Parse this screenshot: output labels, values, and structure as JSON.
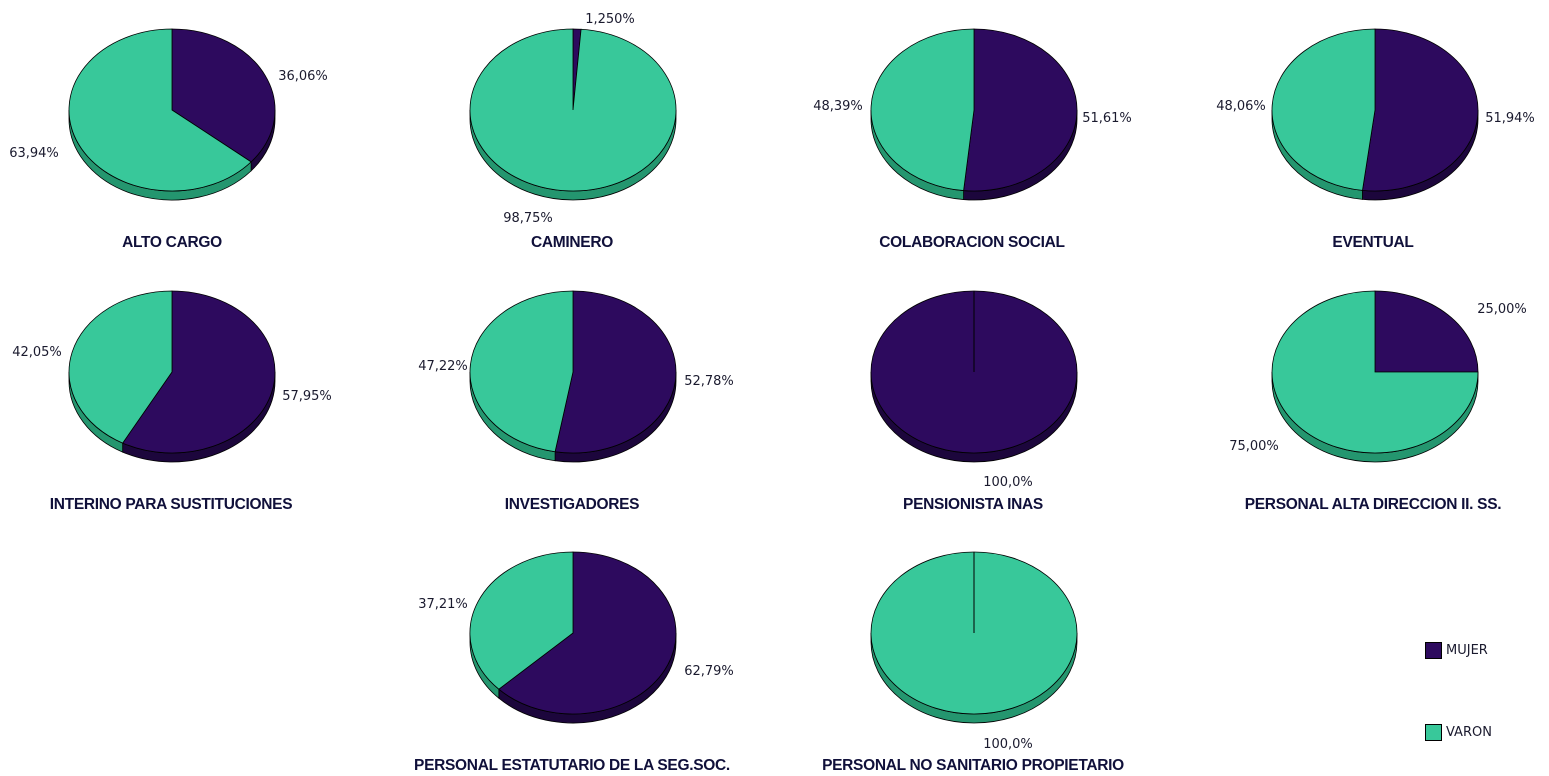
{
  "legend": {
    "mujer_label": "MUJER",
    "varon_label": "VARON",
    "mujer_color": "#2d0a5e",
    "varon_color": "#38c89a"
  },
  "chart_data": {
    "type": "pie",
    "series_names": [
      "MUJER",
      "VARON"
    ],
    "colors": {
      "MUJER": "#2d0a5e",
      "VARON": "#38c89a"
    },
    "pies": [
      {
        "title": "ALTO CARGO",
        "slices": [
          {
            "name": "MUJER",
            "value": 36.06,
            "label": "36,06%"
          },
          {
            "name": "VARON",
            "value": 63.94,
            "label": "63,94%"
          }
        ]
      },
      {
        "title": "CAMINERO",
        "slices": [
          {
            "name": "MUJER",
            "value": 1.25,
            "label": "1,250%"
          },
          {
            "name": "VARON",
            "value": 98.75,
            "label": "98,75%"
          }
        ]
      },
      {
        "title": "COLABORACION SOCIAL",
        "slices": [
          {
            "name": "MUJER",
            "value": 51.61,
            "label": "51,61%"
          },
          {
            "name": "VARON",
            "value": 48.39,
            "label": "48,39%"
          }
        ]
      },
      {
        "title": "EVENTUAL",
        "slices": [
          {
            "name": "MUJER",
            "value": 51.94,
            "label": "51,94%"
          },
          {
            "name": "VARON",
            "value": 48.06,
            "label": "48,06%"
          }
        ]
      },
      {
        "title": "INTERINO PARA SUSTITUCIONES",
        "slices": [
          {
            "name": "MUJER",
            "value": 57.95,
            "label": "57,95%"
          },
          {
            "name": "VARON",
            "value": 42.05,
            "label": "42,05%"
          }
        ]
      },
      {
        "title": "INVESTIGADORES",
        "slices": [
          {
            "name": "MUJER",
            "value": 52.78,
            "label": "52,78%"
          },
          {
            "name": "VARON",
            "value": 47.22,
            "label": "47,22%"
          }
        ]
      },
      {
        "title": "PENSIONISTA INAS",
        "slices": [
          {
            "name": "MUJER",
            "value": 100.0,
            "label": "100,0%"
          }
        ]
      },
      {
        "title": "PERSONAL ALTA DIRECCION II. SS.",
        "slices": [
          {
            "name": "MUJER",
            "value": 25.0,
            "label": "25,00%"
          },
          {
            "name": "VARON",
            "value": 75.0,
            "label": "75,00%"
          }
        ]
      },
      {
        "title": "PERSONAL ESTATUTARIO DE LA SEG.SOC.",
        "slices": [
          {
            "name": "MUJER",
            "value": 62.79,
            "label": "62,79%"
          },
          {
            "name": "VARON",
            "value": 37.21,
            "label": "37,21%"
          }
        ]
      },
      {
        "title": "PERSONAL NO SANITARIO PROPIETARIO",
        "slices": [
          {
            "name": "VARON",
            "value": 100.0,
            "label": "100,0%"
          }
        ]
      }
    ]
  }
}
